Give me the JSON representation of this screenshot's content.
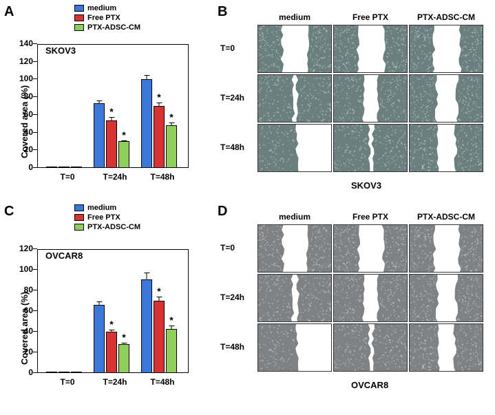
{
  "colors": {
    "medium": "#3b78d8",
    "freePTX": "#d73333",
    "ptxAdscCm": "#8fce5a",
    "axis": "#000000",
    "bg": "#ffffff",
    "micrograph_light": "#c6d4d4",
    "micrograph_dark": "#6b7f80",
    "micrograph_light_ov": "#cfd0d1",
    "micrograph_dark_ov": "#7f8284"
  },
  "legend": {
    "medium": "medium",
    "freePTX": "Free PTX",
    "ptxAdscCm": "PTX-ADSC-CM"
  },
  "chartA": {
    "panel_label": "A",
    "cell_line": "SKOV3",
    "ylabel": "Covered area (%)",
    "ylim": [
      0,
      140
    ],
    "ytick_step": 20,
    "categories": [
      "T=0",
      "T=24h",
      "T=48h"
    ],
    "series": [
      {
        "name": "medium",
        "values": [
          0,
          73,
          100
        ],
        "err": [
          0,
          4,
          6
        ]
      },
      {
        "name": "Free PTX",
        "values": [
          0,
          54,
          70
        ],
        "err": [
          0,
          4,
          5
        ],
        "sig": [
          false,
          true,
          true
        ]
      },
      {
        "name": "PTX-ADSC-CM",
        "values": [
          0,
          30,
          48
        ],
        "err": [
          0,
          2,
          4
        ],
        "sig": [
          false,
          true,
          true
        ]
      }
    ]
  },
  "chartC": {
    "panel_label": "C",
    "cell_line": "OVCAR8",
    "ylabel": "Covered area (%)",
    "ylim": [
      0,
      120
    ],
    "ytick_step": 20,
    "categories": [
      "T=0",
      "T=24h",
      "T=48h"
    ],
    "series": [
      {
        "name": "medium",
        "values": [
          0,
          66,
          91
        ],
        "err": [
          0,
          4,
          7
        ]
      },
      {
        "name": "Free PTX",
        "values": [
          0,
          40,
          70
        ],
        "err": [
          0,
          3,
          5
        ],
        "sig": [
          false,
          true,
          true
        ]
      },
      {
        "name": "PTX-ADSC-CM",
        "values": [
          0,
          28,
          43
        ],
        "err": [
          0,
          2,
          4
        ],
        "sig": [
          false,
          true,
          true
        ]
      }
    ]
  },
  "panelB": {
    "panel_label": "B",
    "columns": [
      "medium",
      "Free PTX",
      "PTX-ADSC-CM"
    ],
    "rows": [
      "T=0",
      "T=24h",
      "T=48h"
    ],
    "bottom_label": "SKOV3",
    "gap_ratio": [
      [
        0.4,
        0.4,
        0.4
      ],
      [
        0.1,
        0.24,
        0.32
      ],
      [
        0.0,
        0.1,
        0.28
      ]
    ]
  },
  "panelD": {
    "panel_label": "D",
    "columns": [
      "medium",
      "Free PTX",
      "PTX-ADSC-CM"
    ],
    "rows": [
      "T=0",
      "T=24h",
      "T=48h"
    ],
    "bottom_label": "OVCAR8",
    "gap_ratio": [
      [
        0.38,
        0.38,
        0.38
      ],
      [
        0.12,
        0.24,
        0.3
      ],
      [
        0.0,
        0.1,
        0.26
      ]
    ]
  }
}
